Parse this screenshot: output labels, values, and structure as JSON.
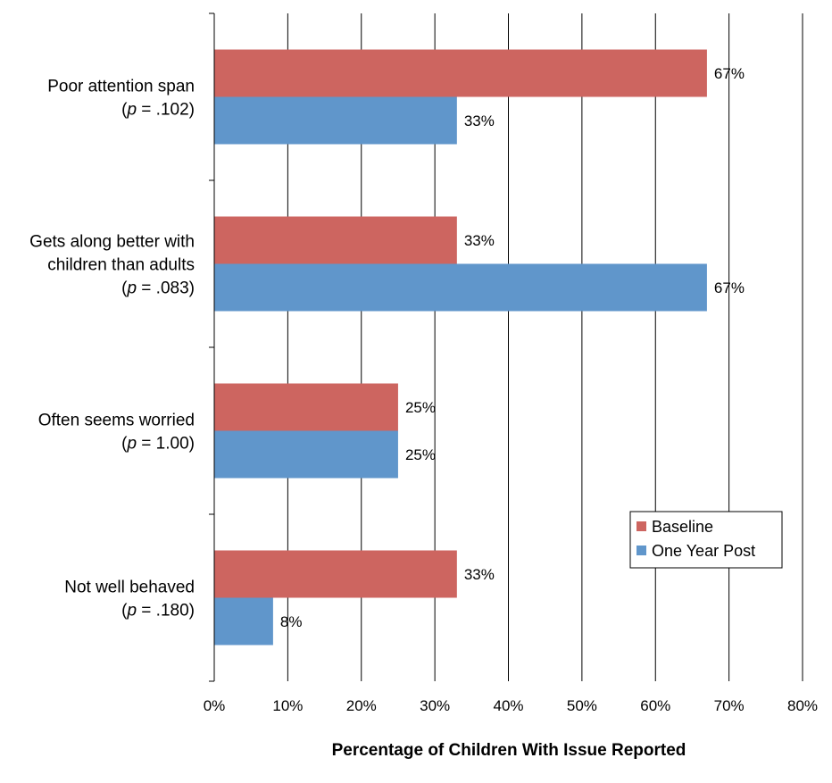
{
  "chart_data": {
    "type": "bar",
    "orientation": "horizontal",
    "categories": [
      {
        "lines": [
          "Poor attention span"
        ],
        "p_prefix": "(",
        "p_italic": "p",
        "p_value": " = .102)"
      },
      {
        "lines": [
          "Gets along better with",
          "children than adults"
        ],
        "p_prefix": "(",
        "p_italic": "p",
        "p_value": " = .083)"
      },
      {
        "lines": [
          "Often seems worried"
        ],
        "p_prefix": "(",
        "p_italic": "p",
        "p_value": " = 1.00)"
      },
      {
        "lines": [
          "Not well behaved"
        ],
        "p_prefix": "(",
        "p_italic": "p",
        "p_value": " = .180)"
      }
    ],
    "series": [
      {
        "name": "Baseline",
        "color": "#CD6560",
        "values": [
          67,
          33,
          25,
          33
        ],
        "labels": [
          "67%",
          "33%",
          "25%",
          "33%"
        ]
      },
      {
        "name": "One Year Post",
        "color": "#6096CB",
        "values": [
          33,
          67,
          25,
          8
        ],
        "labels": [
          "33%",
          "67%",
          "25%",
          "8%"
        ]
      }
    ],
    "xlim": [
      0,
      80
    ],
    "xticks": [
      "0%",
      "10%",
      "20%",
      "30%",
      "40%",
      "50%",
      "60%",
      "70%",
      "80%"
    ],
    "xlabel": "Percentage of Children With Issue Reported",
    "ylabel": "",
    "title": "",
    "grid": true,
    "legend_position": "bottom-right"
  }
}
